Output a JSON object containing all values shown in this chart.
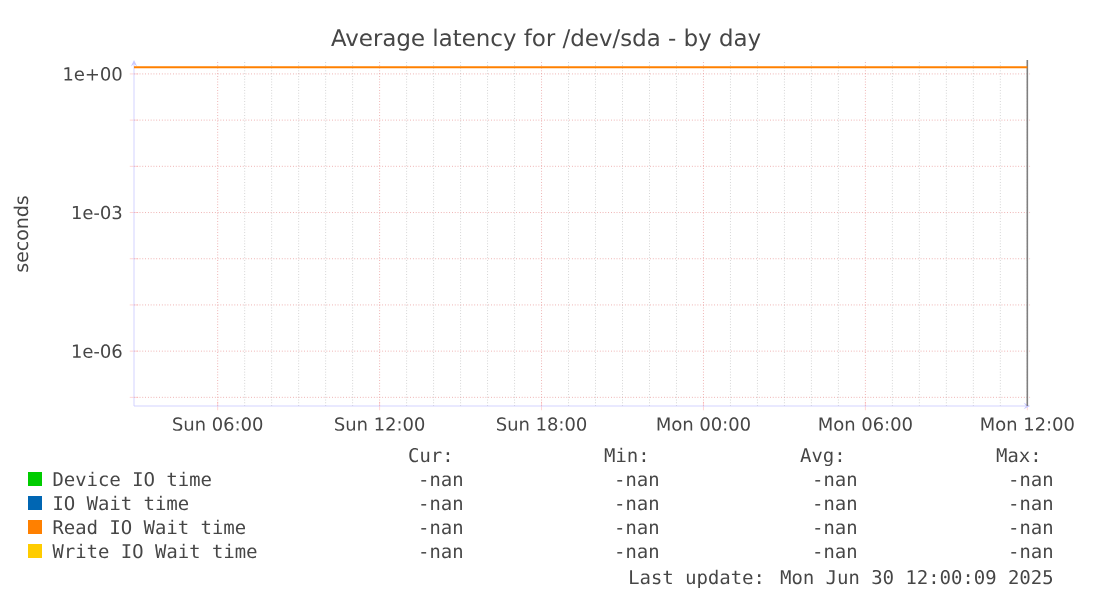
{
  "chart_data": {
    "type": "line",
    "title": "Average latency for /dev/sda - by day",
    "ylabel": "seconds",
    "x": [
      "2025-06-29T02:54",
      "2025-06-30T12:00"
    ],
    "series": [
      {
        "name": "Device IO time",
        "color": "#00cc00",
        "values": [
          null,
          null
        ]
      },
      {
        "name": "IO Wait time",
        "color": "#0066b3",
        "values": [
          null,
          null
        ]
      },
      {
        "name": "Read IO Wait time",
        "color": "#ff8000",
        "values": [
          1.4,
          1.4
        ]
      },
      {
        "name": "Write IO Wait time",
        "color": "#ffcc00",
        "values": [
          null,
          null
        ]
      }
    ],
    "log": "y",
    "grid": true,
    "legend": "bottom",
    "marker": "none",
    "line_style": "solid",
    "xlim": [
      "2025-06-29T02:54",
      "2025-06-30T12:06"
    ],
    "ylim": [
      6.5e-08,
      2
    ],
    "xticks": [
      {
        "value": "2025-06-29T06:00",
        "label": "Sun 06:00"
      },
      {
        "value": "2025-06-29T12:00",
        "label": "Sun 12:00"
      },
      {
        "value": "2025-06-29T18:00",
        "label": "Sun 18:00"
      },
      {
        "value": "2025-06-30T00:00",
        "label": "Mon 00:00"
      },
      {
        "value": "2025-06-30T06:00",
        "label": "Mon 06:00"
      },
      {
        "value": "2025-06-30T12:00",
        "label": "Mon 12:00"
      }
    ],
    "yticks": [
      {
        "value": 1,
        "label": "1e+00"
      },
      {
        "value": 0.1,
        "label": null
      },
      {
        "value": 0.01,
        "label": null
      },
      {
        "value": 0.001,
        "label": "1e-03"
      },
      {
        "value": 0.0001,
        "label": null
      },
      {
        "value": 1e-05,
        "label": null
      },
      {
        "value": 1e-06,
        "label": "1e-06"
      },
      {
        "value": 1e-07,
        "label": null
      }
    ],
    "ref_lines": [
      {
        "axis": "x",
        "value": "2025-06-30T12:00",
        "color": "#7f7f7f"
      }
    ],
    "annotations": [
      "Cur:",
      "Min:",
      "Avg:",
      "Max:",
      "-nan",
      "-nan",
      "-nan",
      "-nan",
      "-nan",
      "-nan",
      "-nan",
      "-nan",
      "-nan",
      "-nan",
      "-nan",
      "-nan",
      "-nan",
      "-nan",
      "-nan",
      "-nan",
      "Last update: Mon Jun 30 12:00:09 2025"
    ]
  }
}
